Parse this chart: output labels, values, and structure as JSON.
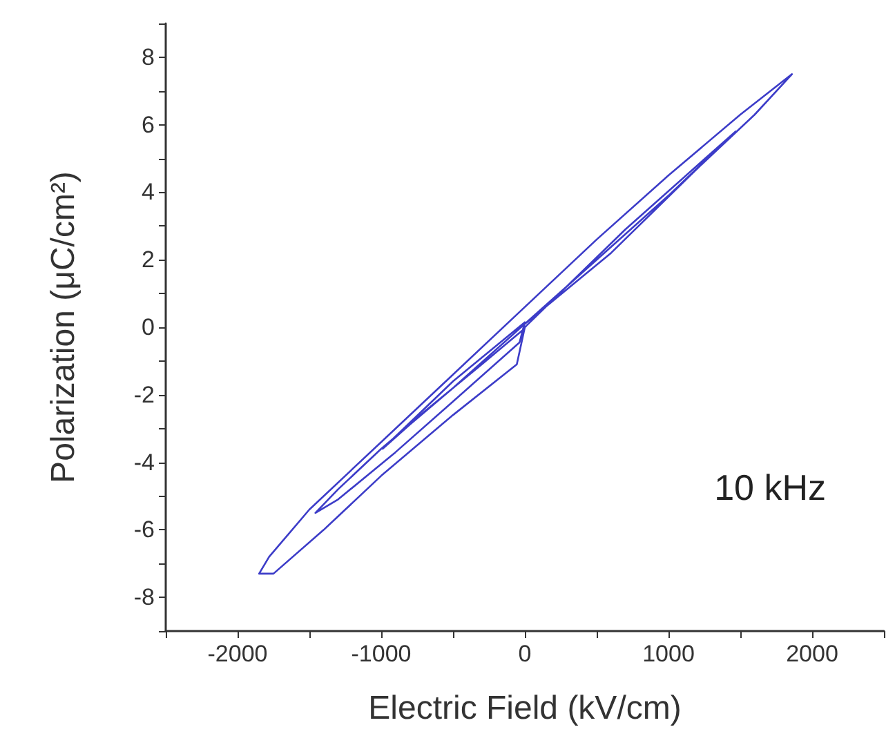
{
  "chart_data": {
    "type": "line",
    "xlabel": "Electric Field (kV/cm)",
    "ylabel": "Polarization (μC/cm²)",
    "annotations": [
      "10 kHz"
    ],
    "xlim": [
      -2500,
      2500
    ],
    "xticks": [
      {
        "value": -2500,
        "label": null
      },
      -2000,
      {
        "value": -1500,
        "label": null
      },
      -1000,
      {
        "value": -500,
        "label": null
      },
      0,
      {
        "value": 500,
        "label": null
      },
      1000,
      {
        "value": 1500,
        "label": null
      },
      2000,
      {
        "value": 2500,
        "label": null
      }
    ],
    "ylim": [
      -9,
      9
    ],
    "yticks": [
      {
        "value": -9,
        "label": null
      },
      -8,
      {
        "value": -7,
        "label": null
      },
      -6,
      {
        "value": -5,
        "label": null
      },
      -4,
      {
        "value": -3,
        "label": null
      },
      -2,
      {
        "value": -1,
        "label": null
      },
      0,
      {
        "value": 1,
        "label": null
      },
      2,
      {
        "value": 3,
        "label": null
      },
      4,
      {
        "value": 5,
        "label": null
      },
      6,
      {
        "value": 7,
        "label": null
      },
      8,
      {
        "value": 9,
        "label": null
      }
    ],
    "marker": "none",
    "line_style": "solid",
    "series": [
      {
        "color": "#3c3cc8",
        "x": [
          0,
          600,
          1200,
          1600,
          1860,
          1500,
          1000,
          500,
          0,
          -500,
          -1000,
          -1500,
          -1780,
          -1850,
          -1750,
          -1400,
          -1000,
          -500,
          -56,
          0,
          700,
          1467,
          1000,
          500,
          0,
          -500,
          -1000,
          -1300,
          -1458,
          -1300,
          -900,
          -500,
          -37,
          0,
          -500,
          -990,
          -700,
          -300,
          -20
        ],
        "values": [
          0.1,
          2.2,
          4.7,
          6.3,
          7.5,
          6.3,
          4.5,
          2.6,
          0.6,
          -1.4,
          -3.4,
          -5.4,
          -6.8,
          -7.3,
          -7.3,
          -6.0,
          -4.4,
          -2.6,
          -1.1,
          0.0,
          2.9,
          5.8,
          3.9,
          2.0,
          0.1,
          -1.8,
          -3.6,
          -4.8,
          -5.5,
          -5.1,
          -3.7,
          -2.2,
          -0.45,
          0.15,
          -1.6,
          -3.6,
          -2.5,
          -1.1,
          -0.1
        ]
      }
    ]
  }
}
